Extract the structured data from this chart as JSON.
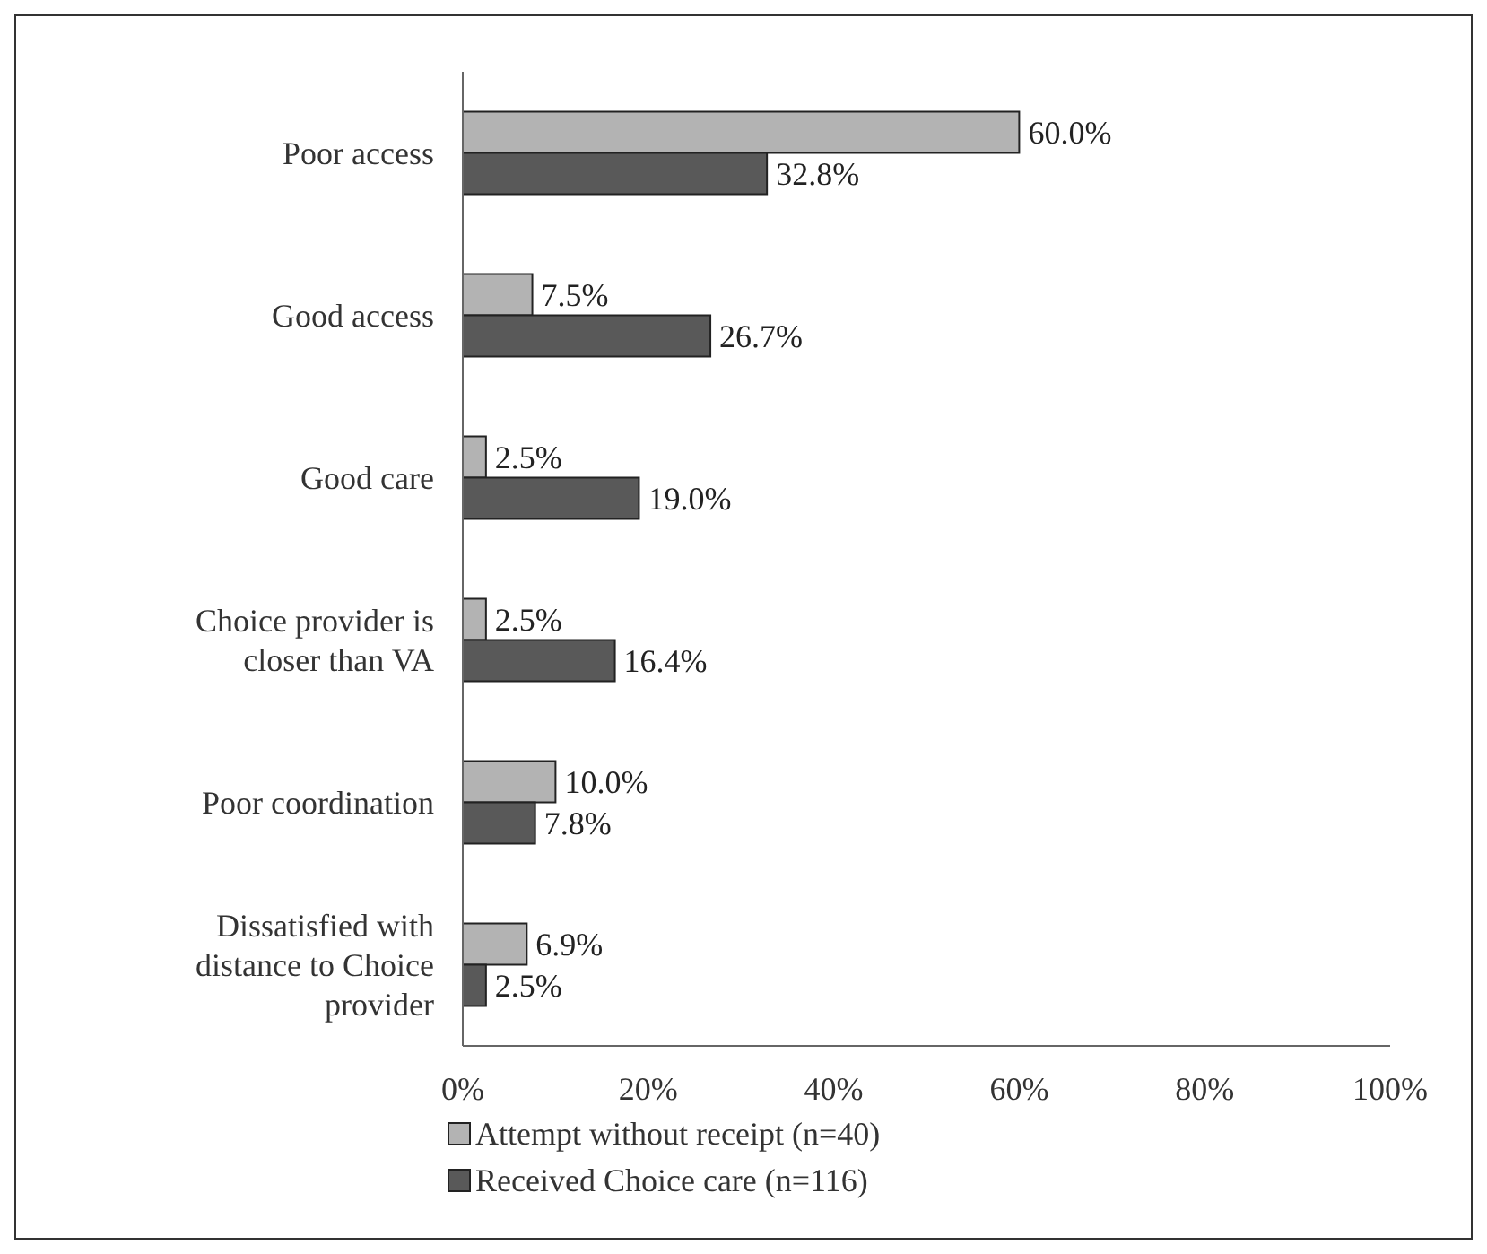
{
  "chart_data": {
    "type": "bar",
    "orientation": "horizontal",
    "categories": [
      "Poor access",
      "Good access",
      "Good care",
      "Choice provider is closer than VA",
      "Poor coordination",
      "Dissatisfied with distance to Choice provider"
    ],
    "series": [
      {
        "name": "Attempt without receipt (n=40)",
        "color": "#b3b3b3",
        "values": [
          60.0,
          7.5,
          2.5,
          2.5,
          10.0,
          6.9
        ],
        "value_labels": [
          "60.0%",
          "7.5%",
          "2.5%",
          "2.5%",
          "10.0%",
          "6.9%"
        ]
      },
      {
        "name": "Received Choice care (n=116)",
        "color": "#595959",
        "values": [
          32.8,
          26.7,
          19.0,
          16.4,
          7.8,
          2.5
        ],
        "value_labels": [
          "32.8%",
          "26.7%",
          "19.0%",
          "16.4%",
          "7.8%",
          "2.5%"
        ]
      }
    ],
    "xlim": [
      0,
      100
    ],
    "xticks": [
      {
        "value": 0,
        "label": "0%"
      },
      {
        "value": 20,
        "label": "20%"
      },
      {
        "value": 40,
        "label": "40%"
      },
      {
        "value": 60,
        "label": "60%"
      },
      {
        "value": 80,
        "label": "80%"
      },
      {
        "value": 100,
        "label": "100%"
      }
    ],
    "grid": false,
    "legend": "bottom"
  }
}
